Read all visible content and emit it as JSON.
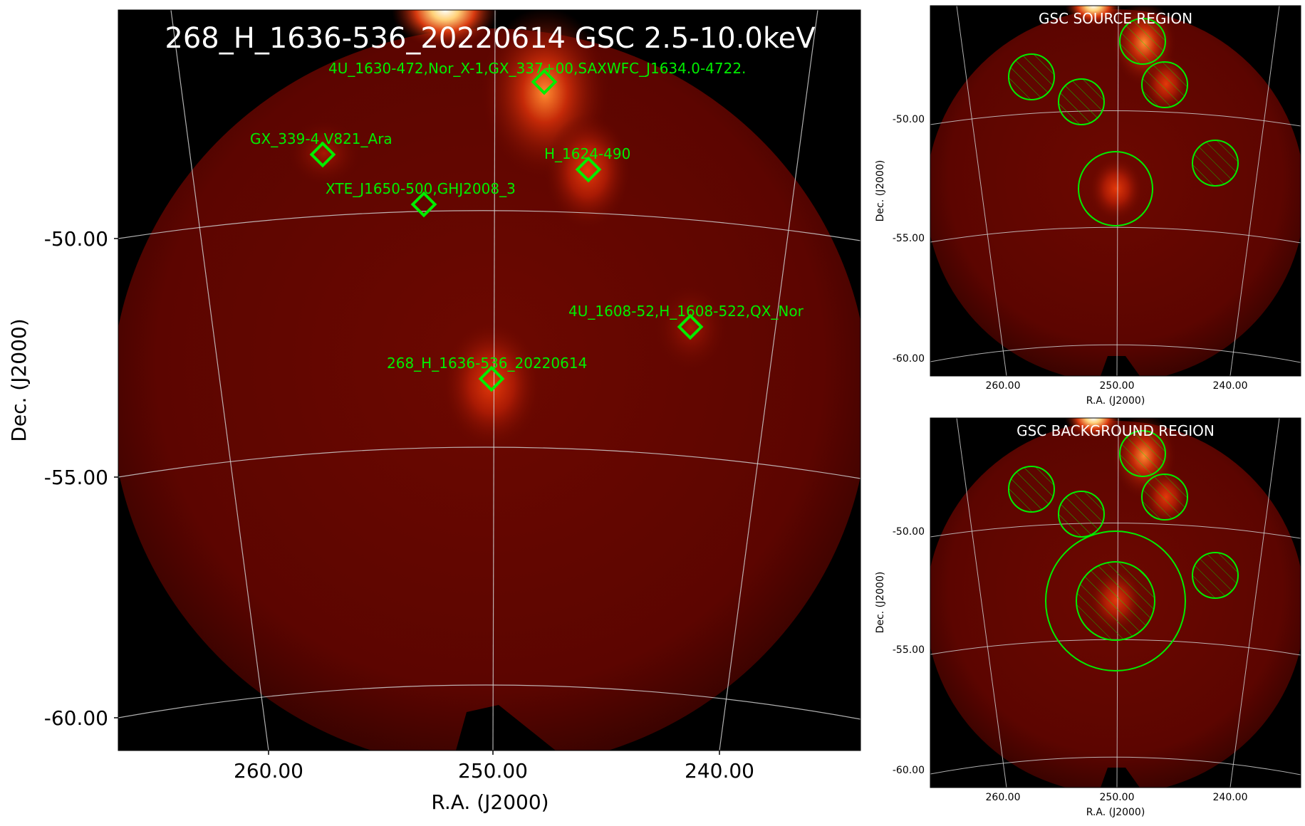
{
  "main": {
    "title": "268_H_1636-536_20220614 GSC 2.5-10.0keV",
    "xlabel": "R.A. (J2000)",
    "ylabel": "Dec. (J2000)",
    "xticks": [
      "260.00",
      "250.00",
      "240.00"
    ],
    "yticks": [
      "-50.00",
      "-55.00",
      "-60.00"
    ],
    "sources": [
      {
        "label": "4U_1630-472,Nor_X-1,GX_337+00,SAXWFC_J1634.0-4722."
      },
      {
        "label": "GX_339-4,V821_Ara"
      },
      {
        "label": "H_1624-490"
      },
      {
        "label": "XTE_J1650-500,GHJ2008_3"
      },
      {
        "label": "4U_1608-52,H_1608-522,QX_Nor"
      },
      {
        "label": "268_H_1636-536_20220614"
      }
    ]
  },
  "source_panel": {
    "title": "GSC SOURCE REGION",
    "xlabel": "R.A. (J2000)",
    "ylabel": "Dec. (J2000)",
    "xticks": [
      "260.00",
      "250.00",
      "240.00"
    ],
    "yticks": [
      "-50.00",
      "-55.00",
      "-60.00"
    ]
  },
  "background_panel": {
    "title": "GSC BACKGROUND REGION",
    "xlabel": "R.A. (J2000)",
    "ylabel": "Dec. (J2000)",
    "xticks": [
      "260.00",
      "250.00",
      "240.00"
    ],
    "yticks": [
      "-50.00",
      "-55.00",
      "-60.00"
    ]
  },
  "colors": {
    "field": "#5e0600",
    "background": "#000000",
    "marker": "#00ee00",
    "grid": "#cfcfcf",
    "title_text": "#ffffff"
  }
}
